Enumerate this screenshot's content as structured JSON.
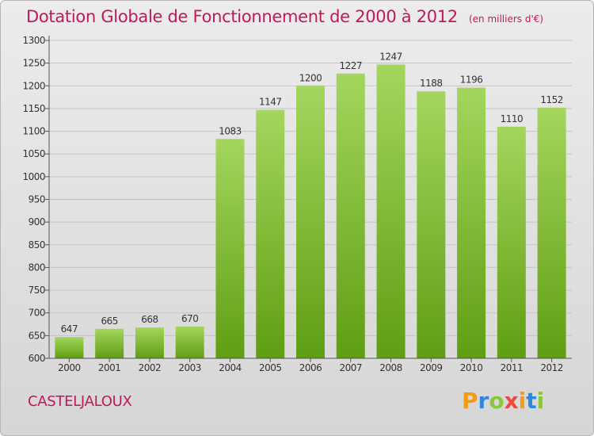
{
  "title": "Dotation Globale de Fonctionnement de 2000 à 2012",
  "unit_note": "(en milliers d'€)",
  "commune": "CASTELJALOUX",
  "brand": {
    "text": "Proxiti",
    "colors": [
      "#f39c12",
      "#2e86de",
      "#8cc63f",
      "#e74c3c"
    ]
  },
  "colors": {
    "bar_top": "#a4d65e",
    "bar_bottom": "#5f9e12",
    "title": "#c2185b"
  },
  "chart_data": {
    "type": "bar",
    "categories": [
      "2000",
      "2001",
      "2002",
      "2003",
      "2004",
      "2005",
      "2006",
      "2007",
      "2008",
      "2009",
      "2010",
      "2011",
      "2012"
    ],
    "values": [
      647,
      665,
      668,
      670,
      1083,
      1147,
      1200,
      1227,
      1247,
      1188,
      1196,
      1110,
      1152
    ],
    "ylim": [
      600,
      1300
    ],
    "yticks": [
      600,
      650,
      700,
      750,
      800,
      850,
      900,
      950,
      1000,
      1050,
      1100,
      1150,
      1200,
      1250,
      1300
    ],
    "grid": true,
    "legend": "none"
  }
}
